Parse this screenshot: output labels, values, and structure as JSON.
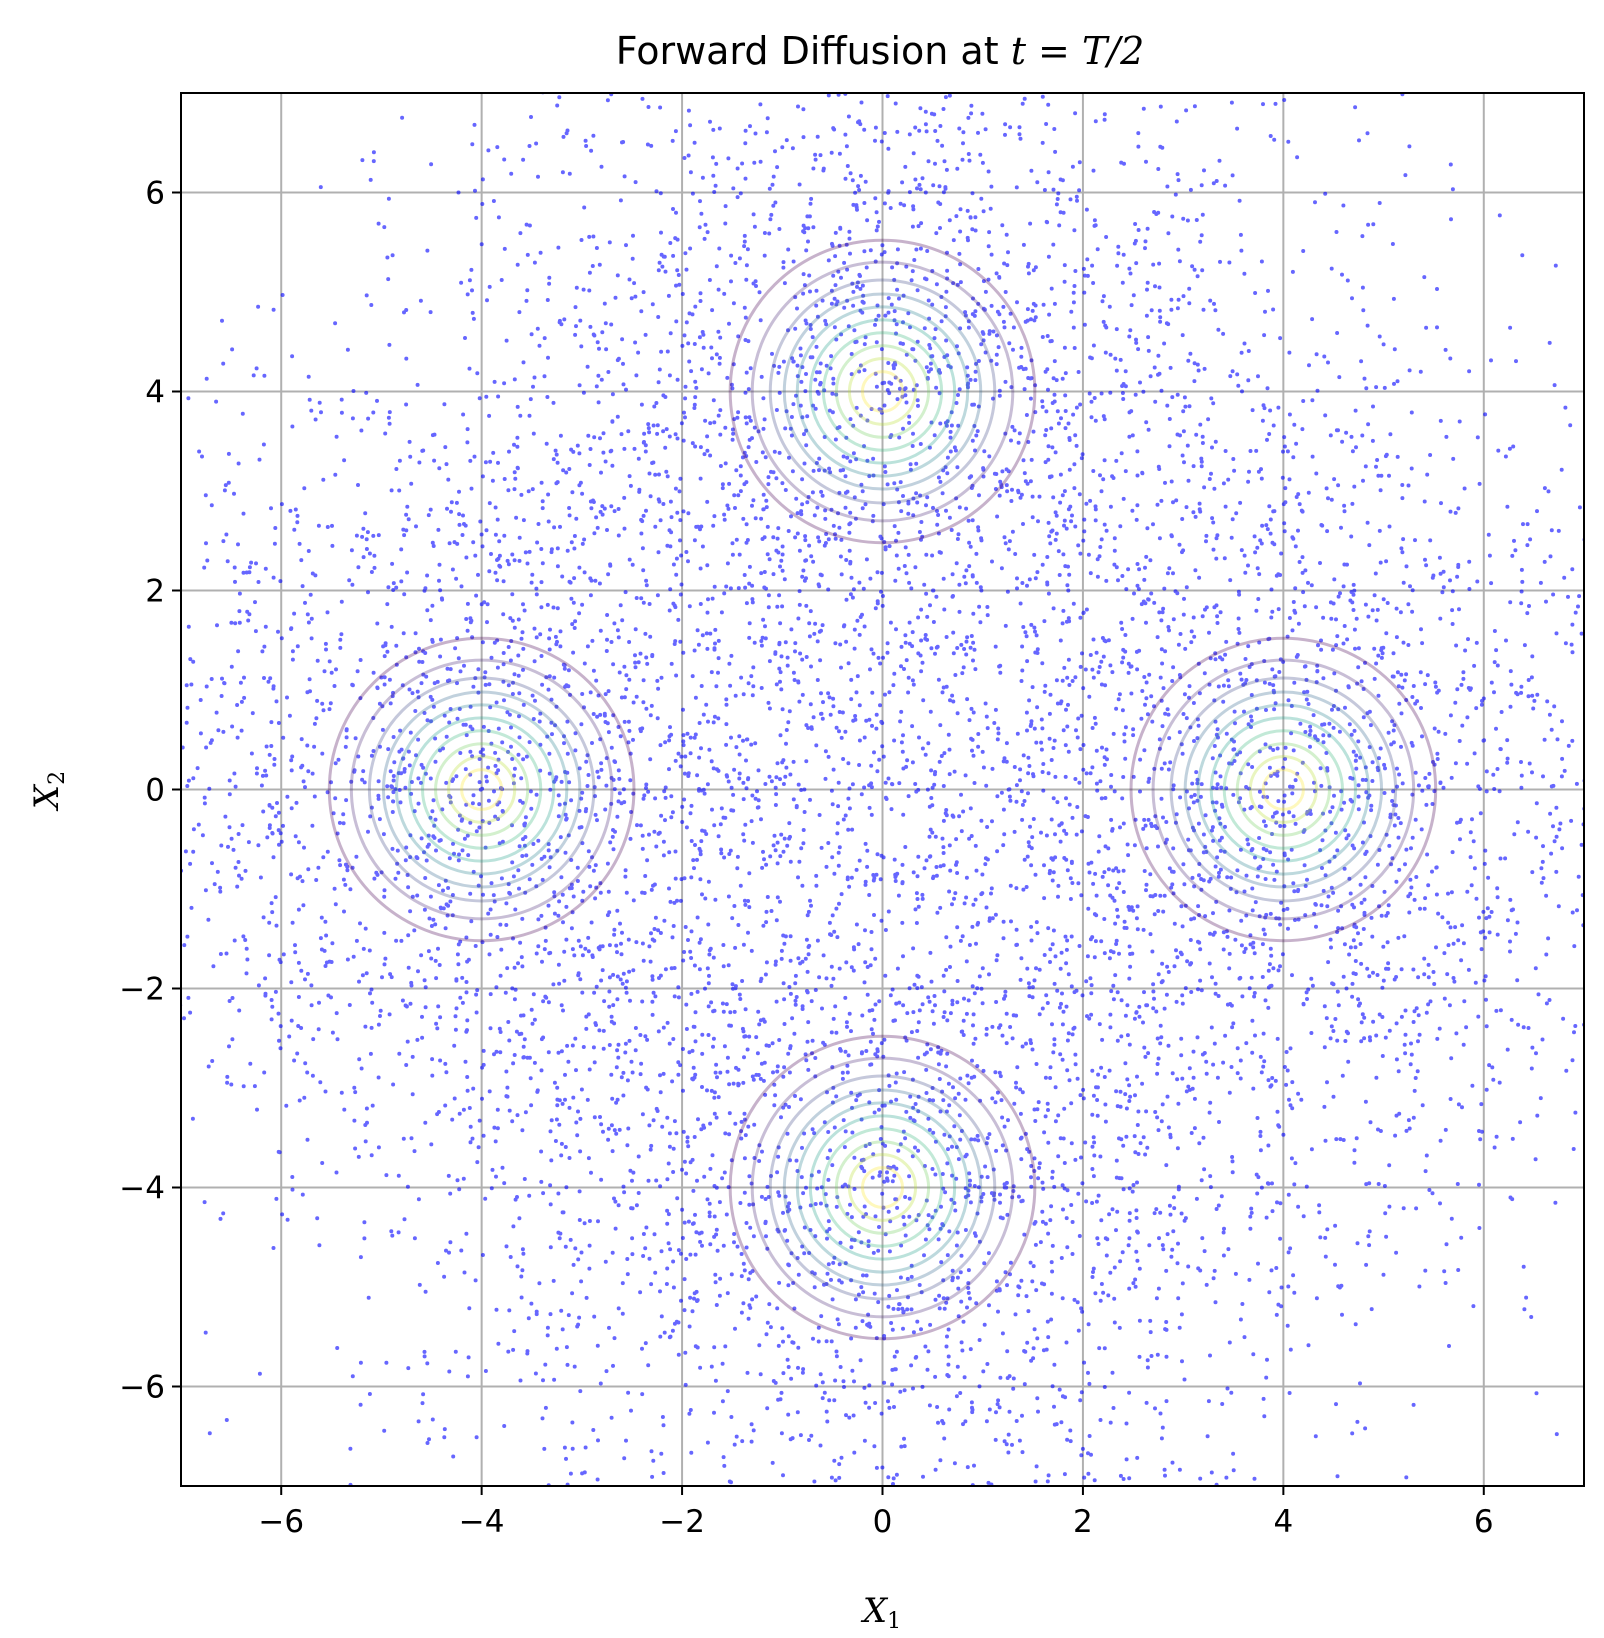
{
  "chart_data": {
    "type": "scatter",
    "title": "Forward Diffusion at t = T/2",
    "title_parts": {
      "prefix": "Forward Diffusion at ",
      "math": "t = T/2"
    },
    "xlabel": {
      "base": "X",
      "sub": "1"
    },
    "ylabel": {
      "base": "X",
      "sub": "2"
    },
    "xlim": [
      -7,
      7
    ],
    "ylim": [
      -7,
      7
    ],
    "xticks": [
      -6,
      -4,
      -2,
      0,
      2,
      4,
      6
    ],
    "yticks": [
      -6,
      -4,
      -2,
      0,
      2,
      4,
      6
    ],
    "xtick_labels": [
      "−6",
      "−4",
      "−2",
      "0",
      "2",
      "4",
      "6"
    ],
    "ytick_labels": [
      "−6",
      "−4",
      "−2",
      "0",
      "2",
      "4",
      "6"
    ],
    "grid": true,
    "scatter_color": "#0000ff",
    "scatter_opacity": 0.6,
    "mixture_centers": [
      [
        -4,
        0
      ],
      [
        4,
        0
      ],
      [
        0,
        4
      ],
      [
        0,
        -4
      ]
    ],
    "contour_radii": [
      0.2,
      0.33,
      0.46,
      0.59,
      0.72,
      0.85,
      0.98,
      1.12,
      1.3,
      1.52
    ],
    "contour_colors": [
      "#fde725",
      "#b5de2b",
      "#6ece58",
      "#35b779",
      "#1f9e89",
      "#26828e",
      "#31688e",
      "#3e4989",
      "#482878",
      "#440154"
    ],
    "contour_opacity": 0.3,
    "point_count": 9000,
    "point_spread_sd": 2.2
  }
}
